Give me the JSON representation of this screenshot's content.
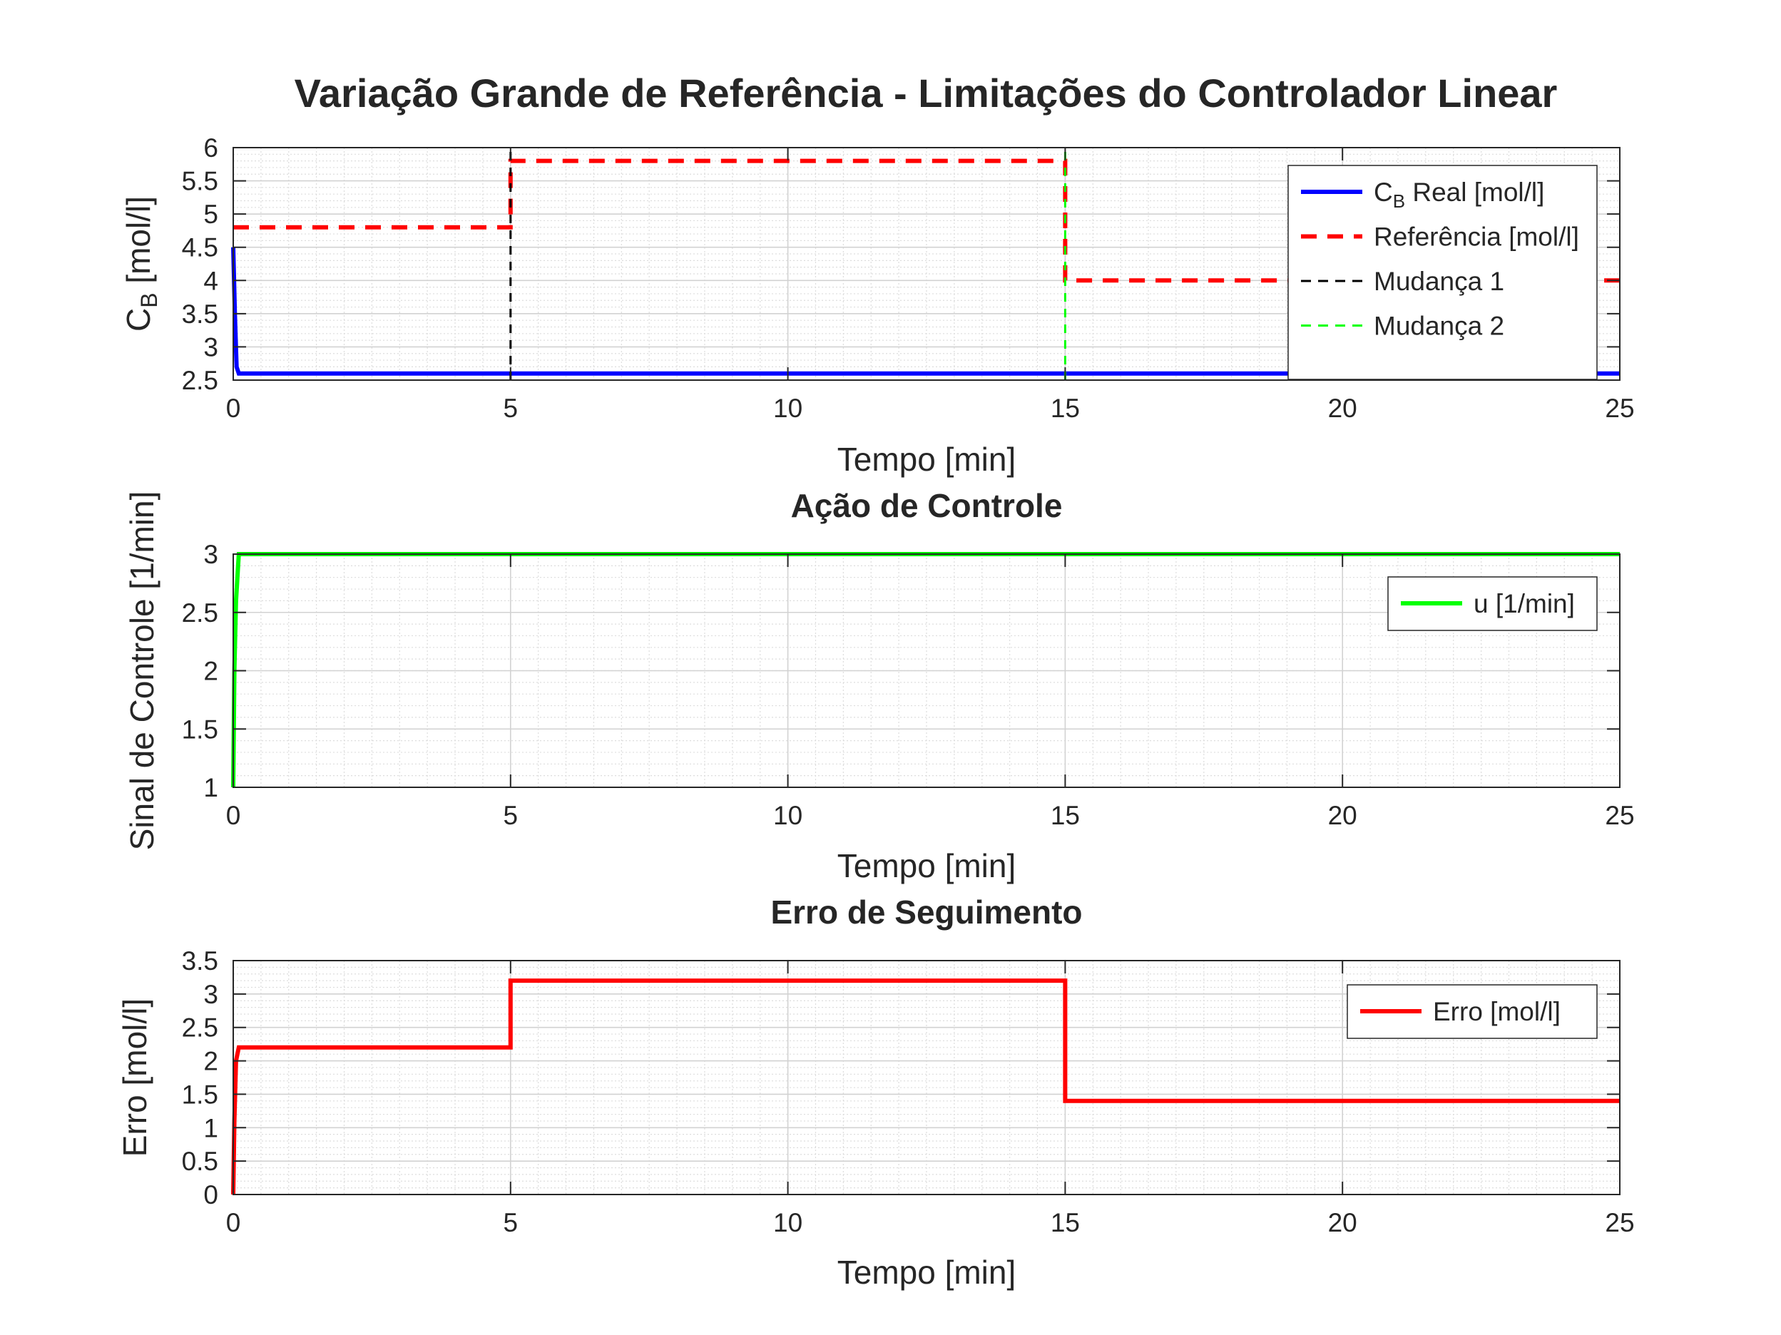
{
  "figure_title": "Variação Grande de Referência - Limitações do Controlador Linear",
  "chart_data": [
    {
      "type": "line",
      "title": "",
      "xlabel": "Tempo [min]",
      "ylabel": {
        "main": "C",
        "sub": "B",
        "rest": " [mol/l]"
      },
      "xlim": [
        0,
        25
      ],
      "ylim": [
        2.5,
        6
      ],
      "xticks": [
        0,
        5,
        10,
        15,
        20,
        25
      ],
      "xtick_labels": [
        "0",
        "5",
        "10",
        "15",
        "20",
        "25"
      ],
      "yticks": [
        2.5,
        3,
        3.5,
        4,
        4.5,
        5,
        5.5,
        6
      ],
      "ytick_labels": [
        "2.5",
        "3",
        "3.5",
        "4",
        "4.5",
        "5",
        "5.5",
        "6"
      ],
      "grid": true,
      "minor_grid": true,
      "legend_position": "top-right",
      "series": [
        {
          "name": "C",
          "name_sub": "B",
          "name_rest": " Real [mol/l]",
          "color": "#0000ff",
          "style": "solid",
          "x": [
            0,
            0.03,
            0.06,
            0.1,
            25
          ],
          "y": [
            4.5,
            3.5,
            2.7,
            2.6,
            2.6
          ]
        },
        {
          "name": "Referência [mol/l]",
          "color": "#ff0000",
          "style": "dashed",
          "x": [
            0,
            5,
            5,
            15,
            15,
            25
          ],
          "y": [
            4.8,
            4.8,
            5.8,
            5.8,
            4.0,
            4.0
          ]
        },
        {
          "name": "Mudança 1",
          "color": "#000000",
          "style": "dashed-thin",
          "x": [
            5,
            5
          ],
          "y": [
            2.5,
            6
          ]
        },
        {
          "name": "Mudança 2",
          "color": "#00ff00",
          "style": "dashed-thin",
          "x": [
            15,
            15
          ],
          "y": [
            2.5,
            6
          ]
        }
      ]
    },
    {
      "type": "line",
      "title": "Ação de Controle",
      "xlabel": "Tempo [min]",
      "ylabel": "Sinal de Controle [1/min]",
      "xlim": [
        0,
        25
      ],
      "ylim": [
        1,
        3
      ],
      "xticks": [
        0,
        5,
        10,
        15,
        20,
        25
      ],
      "xtick_labels": [
        "0",
        "5",
        "10",
        "15",
        "20",
        "25"
      ],
      "yticks": [
        1,
        1.5,
        2,
        2.5,
        3
      ],
      "ytick_labels": [
        "1",
        "1.5",
        "2",
        "2.5",
        "3"
      ],
      "grid": true,
      "minor_grid": true,
      "legend_position": "top-right",
      "series": [
        {
          "name": "u [1/min]",
          "color": "#00ff00",
          "style": "solid",
          "x": [
            0,
            0.02,
            0.05,
            0.1,
            25
          ],
          "y": [
            1,
            2.0,
            2.6,
            3.0,
            3.0
          ]
        }
      ]
    },
    {
      "type": "line",
      "title": "Erro de Seguimento",
      "xlabel": "Tempo [min]",
      "ylabel": "Erro [mol/l]",
      "xlim": [
        0,
        25
      ],
      "ylim": [
        0,
        3.5
      ],
      "xticks": [
        0,
        5,
        10,
        15,
        20,
        25
      ],
      "xtick_labels": [
        "0",
        "5",
        "10",
        "15",
        "20",
        "25"
      ],
      "yticks": [
        0,
        0.5,
        1,
        1.5,
        2,
        2.5,
        3,
        3.5
      ],
      "ytick_labels": [
        "0",
        "0.5",
        "1",
        "1.5",
        "2",
        "2.5",
        "3",
        "3.5"
      ],
      "grid": true,
      "minor_grid": true,
      "legend_position": "top-right",
      "series": [
        {
          "name": "Erro [mol/l]",
          "color": "#ff0000",
          "style": "solid",
          "x": [
            0,
            0.02,
            0.05,
            0.1,
            5,
            5,
            15,
            15,
            25
          ],
          "y": [
            0,
            1.1,
            2.0,
            2.2,
            2.2,
            3.2,
            3.2,
            1.4,
            1.4
          ]
        }
      ]
    }
  ]
}
